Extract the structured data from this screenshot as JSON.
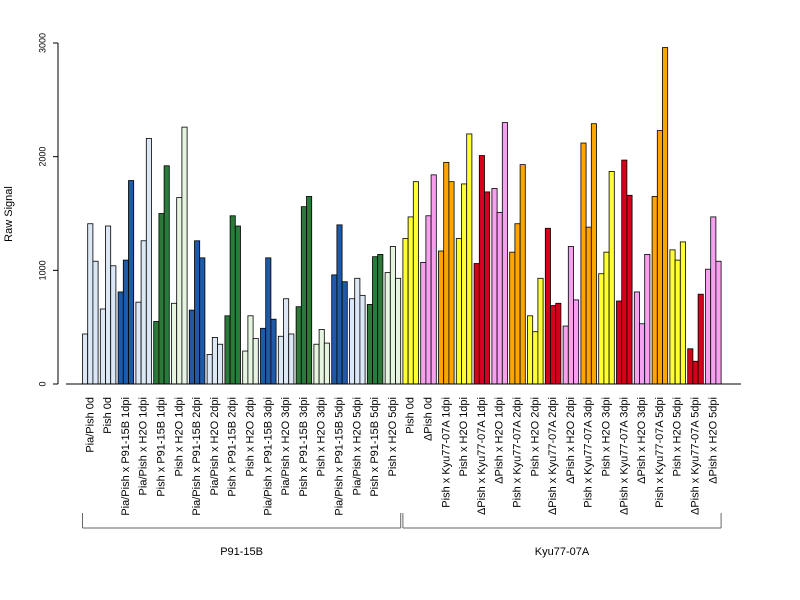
{
  "chart_data": {
    "type": "bar",
    "ylabel": "Raw Signal",
    "xlabel": "",
    "ylim": [
      0,
      3000
    ],
    "yticks": [
      0,
      1000,
      2000,
      3000
    ],
    "grid": false,
    "legend": "none",
    "colors": {
      "lightblue": "#dce8f6",
      "darkblue": "#1f5aa8",
      "lightgreen": "#e5f5e0",
      "darkgreen": "#2a7a3a",
      "yellow": "#ffff33",
      "pink": "#f7a0f0",
      "orange": "#ffa500",
      "red": "#d7001a"
    },
    "categories": [
      {
        "label": "Pia/Pish 0d",
        "color": "lightblue",
        "values": [
          440,
          1410,
          1080
        ]
      },
      {
        "label": "Pish 0d",
        "color": "lightblue",
        "values": [
          660,
          1390,
          1040
        ]
      },
      {
        "label": "Pia/Pish x P91-15B 1dpi",
        "color": "darkblue",
        "values": [
          810,
          1090,
          1790
        ]
      },
      {
        "label": "Pia/Pish x H2O 1dpi",
        "color": "lightblue",
        "values": [
          720,
          1260,
          2160
        ]
      },
      {
        "label": "Pish x P91-15B 1dpi",
        "color": "darkgreen",
        "values": [
          550,
          1500,
          1920
        ]
      },
      {
        "label": "Pish x H2O 1dpi",
        "color": "lightgreen",
        "values": [
          710,
          1640,
          2260
        ]
      },
      {
        "label": "Pia/Pish x P91-15B 2dpi",
        "color": "darkblue",
        "values": [
          650,
          1260,
          1110
        ]
      },
      {
        "label": "Pia/Pish x H2O 2dpi",
        "color": "lightblue",
        "values": [
          260,
          410,
          350
        ]
      },
      {
        "label": "Pish x P91-15B 2dpi",
        "color": "darkgreen",
        "values": [
          600,
          1480,
          1390
        ]
      },
      {
        "label": "Pish x H2O 2dpi",
        "color": "lightgreen",
        "values": [
          290,
          600,
          400
        ]
      },
      {
        "label": "Pia/Pish x P91-15B 3dpi",
        "color": "darkblue",
        "values": [
          490,
          1110,
          570
        ]
      },
      {
        "label": "Pia/Pish x H2O 3dpi",
        "color": "lightblue",
        "values": [
          420,
          750,
          440
        ]
      },
      {
        "label": "Pish x P91-15B 3dpi",
        "color": "darkgreen",
        "values": [
          680,
          1560,
          1650
        ]
      },
      {
        "label": "Pish x H2O 3dpi",
        "color": "lightgreen",
        "values": [
          350,
          480,
          360
        ]
      },
      {
        "label": "Pia/Pish x P91-15B 5dpi",
        "color": "darkblue",
        "values": [
          960,
          1400,
          900
        ]
      },
      {
        "label": "Pia/Pish x H2O 5dpi",
        "color": "lightblue",
        "values": [
          750,
          930,
          780
        ]
      },
      {
        "label": "Pish x P91-15B 5dpi",
        "color": "darkgreen",
        "values": [
          700,
          1120,
          1140
        ]
      },
      {
        "label": "Pish x H2O 5dpi",
        "color": "lightgreen",
        "values": [
          980,
          1210,
          930
        ]
      },
      {
        "label": "Pish 0d",
        "color": "yellow",
        "values": [
          1280,
          1470,
          1780
        ]
      },
      {
        "label": "ΔPish 0d",
        "color": "pink",
        "values": [
          1070,
          1480,
          1840
        ]
      },
      {
        "label": "Pish x Kyu77-07A 1dpi",
        "color": "orange",
        "values": [
          1170,
          1950,
          1780
        ]
      },
      {
        "label": "Pish x H2O 1dpi",
        "color": "yellow",
        "values": [
          1280,
          1760,
          2200
        ]
      },
      {
        "label": "ΔPish x Kyu77-07A 1dpi",
        "color": "red",
        "values": [
          1060,
          2010,
          1690
        ]
      },
      {
        "label": "ΔPish x H2O 1dpi",
        "color": "pink",
        "values": [
          1720,
          1510,
          2300
        ]
      },
      {
        "label": "Pish x Kyu77-07A 2dpi",
        "color": "orange",
        "values": [
          1160,
          1410,
          1930
        ]
      },
      {
        "label": "Pish x H2O 2dpi",
        "color": "yellow",
        "values": [
          600,
          460,
          930
        ]
      },
      {
        "label": "ΔPish x Kyu77-07A 2dpi",
        "color": "red",
        "values": [
          1370,
          690,
          710
        ]
      },
      {
        "label": "ΔPish x H2O 2dpi",
        "color": "pink",
        "values": [
          510,
          1210,
          740
        ]
      },
      {
        "label": "Pish x Kyu77-07A 3dpi",
        "color": "orange",
        "values": [
          2120,
          1380,
          2290
        ]
      },
      {
        "label": "Pish x H2O 3dpi",
        "color": "yellow",
        "values": [
          970,
          1160,
          1870
        ]
      },
      {
        "label": "ΔPish x Kyu77-07A 3dpi",
        "color": "red",
        "values": [
          730,
          1970,
          1660
        ]
      },
      {
        "label": "ΔPish x H2O 3dpi",
        "color": "pink",
        "values": [
          810,
          530,
          1140
        ]
      },
      {
        "label": "Pish x Kyu77-07A 5dpi",
        "color": "orange",
        "values": [
          1650,
          2230,
          2960
        ]
      },
      {
        "label": "Pish x H2O 5dpi",
        "color": "yellow",
        "values": [
          1180,
          1090,
          1250
        ]
      },
      {
        "label": "ΔPish x Kyu77-07A 5dpi",
        "color": "red",
        "values": [
          310,
          200,
          790
        ]
      },
      {
        "label": "ΔPish x H2O 5dpi",
        "color": "pink",
        "values": [
          1010,
          1470,
          1080
        ]
      }
    ],
    "groups": [
      {
        "label": "P91-15B",
        "from": 0,
        "to": 17
      },
      {
        "label": "Kyu77-07A",
        "from": 18,
        "to": 35
      }
    ]
  }
}
